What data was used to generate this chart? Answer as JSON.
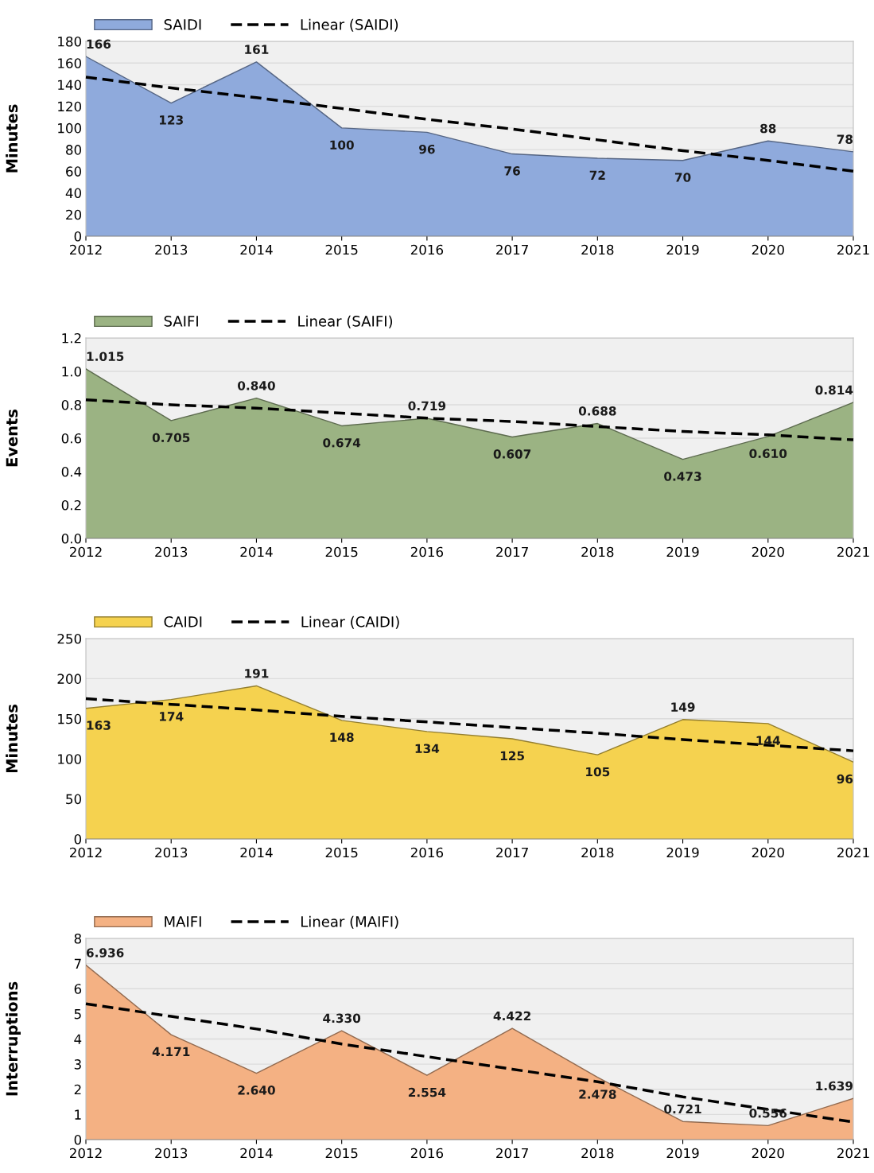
{
  "chart_data": [
    {
      "type": "area",
      "ylabel": "Minutes",
      "x": [
        2012,
        2013,
        2014,
        2015,
        2016,
        2017,
        2018,
        2019,
        2020,
        2021
      ],
      "xlim": [
        2012,
        2021
      ],
      "xticks": [
        2012,
        2013,
        2014,
        2015,
        2016,
        2017,
        2018,
        2019,
        2020,
        2021
      ],
      "ylim": [
        0,
        180
      ],
      "yticks": [
        0,
        20,
        40,
        60,
        80,
        100,
        120,
        140,
        160,
        180
      ],
      "grid": "y",
      "legend": "top left",
      "series": [
        {
          "name": "SAIDI",
          "type": "area",
          "color": "#8faadc",
          "values": [
            166,
            123,
            161,
            100,
            96,
            76,
            72,
            70,
            88,
            78
          ],
          "value_labels": [
            "166",
            "123",
            "161",
            "100",
            "96",
            "76",
            "72",
            "70",
            "88",
            "78"
          ]
        },
        {
          "name": "Linear (SAIDI)",
          "type": "line",
          "color": "#000000",
          "line_style": "dashed",
          "values": [
            147,
            137,
            128,
            118,
            108,
            99,
            89,
            79,
            70,
            60
          ]
        }
      ]
    },
    {
      "type": "area",
      "ylabel": "Events",
      "x": [
        2012,
        2013,
        2014,
        2015,
        2016,
        2017,
        2018,
        2019,
        2020,
        2021
      ],
      "xlim": [
        2012,
        2021
      ],
      "xticks": [
        2012,
        2013,
        2014,
        2015,
        2016,
        2017,
        2018,
        2019,
        2020,
        2021
      ],
      "ylim": [
        0,
        1.2
      ],
      "yticks": [
        {
          "value": 0,
          "label": "0.0"
        },
        0.2,
        0.4,
        0.6,
        0.8,
        {
          "value": 1.0,
          "label": "1.0"
        },
        1.2
      ],
      "grid": "y",
      "legend": "top left",
      "series": [
        {
          "name": "SAIFI",
          "type": "area",
          "color": "#9bb383",
          "values": [
            1.015,
            0.705,
            0.84,
            0.674,
            0.719,
            0.607,
            0.688,
            0.473,
            0.61,
            0.814
          ],
          "value_labels": [
            "1.015",
            "0.705",
            "0.840",
            "0.674",
            "0.719",
            "0.607",
            "0.688",
            "0.473",
            "0.610",
            "0.814"
          ]
        },
        {
          "name": "Linear (SAIFI)",
          "type": "line",
          "color": "#000000",
          "line_style": "dashed",
          "values": [
            0.83,
            0.8,
            0.78,
            0.75,
            0.72,
            0.7,
            0.67,
            0.64,
            0.62,
            0.59
          ]
        }
      ]
    },
    {
      "type": "area",
      "ylabel": "Minutes",
      "x": [
        2012,
        2013,
        2014,
        2015,
        2016,
        2017,
        2018,
        2019,
        2020,
        2021
      ],
      "xlim": [
        2012,
        2021
      ],
      "xticks": [
        2012,
        2013,
        2014,
        2015,
        2016,
        2017,
        2018,
        2019,
        2020,
        2021
      ],
      "ylim": [
        0,
        250
      ],
      "yticks": [
        0,
        50,
        100,
        150,
        200,
        250
      ],
      "grid": "y",
      "legend": "top left",
      "series": [
        {
          "name": "CAIDI",
          "type": "area",
          "color": "#f5d24f",
          "values": [
            163,
            174,
            191,
            148,
            134,
            125,
            105,
            149,
            144,
            96
          ],
          "value_labels": [
            "163",
            "174",
            "191",
            "148",
            "134",
            "125",
            "105",
            "149",
            "144",
            "96"
          ]
        },
        {
          "name": "Linear (CAIDI)",
          "type": "line",
          "color": "#000000",
          "line_style": "dashed",
          "values": [
            175,
            168,
            161,
            153,
            146,
            139,
            132,
            124,
            117,
            110
          ]
        }
      ]
    },
    {
      "type": "area",
      "ylabel": "Interruptions",
      "x": [
        2012,
        2013,
        2014,
        2015,
        2016,
        2017,
        2018,
        2019,
        2020,
        2021
      ],
      "xlim": [
        2012,
        2021
      ],
      "xticks": [
        2012,
        2013,
        2014,
        2015,
        2016,
        2017,
        2018,
        2019,
        2020,
        2021
      ],
      "ylim": [
        0,
        8
      ],
      "yticks": [
        0,
        1,
        2,
        3,
        4,
        5,
        6,
        7,
        8
      ],
      "grid": "y",
      "legend": "top left",
      "series": [
        {
          "name": "MAIFI",
          "type": "area",
          "color": "#f4b183",
          "values": [
            6.936,
            4.171,
            2.64,
            4.33,
            2.554,
            4.422,
            2.478,
            0.721,
            0.556,
            1.639
          ],
          "value_labels": [
            "6.936",
            "4.171",
            "2.640",
            "4.330",
            "2.554",
            "4.422",
            "2.478",
            "0.721",
            "0.556",
            "1.639"
          ]
        },
        {
          "name": "Linear (MAIFI)",
          "type": "line",
          "color": "#000000",
          "line_style": "dashed",
          "values": [
            5.4,
            4.9,
            4.4,
            3.8,
            3.3,
            2.8,
            2.3,
            1.7,
            1.2,
            0.7
          ]
        }
      ]
    }
  ]
}
